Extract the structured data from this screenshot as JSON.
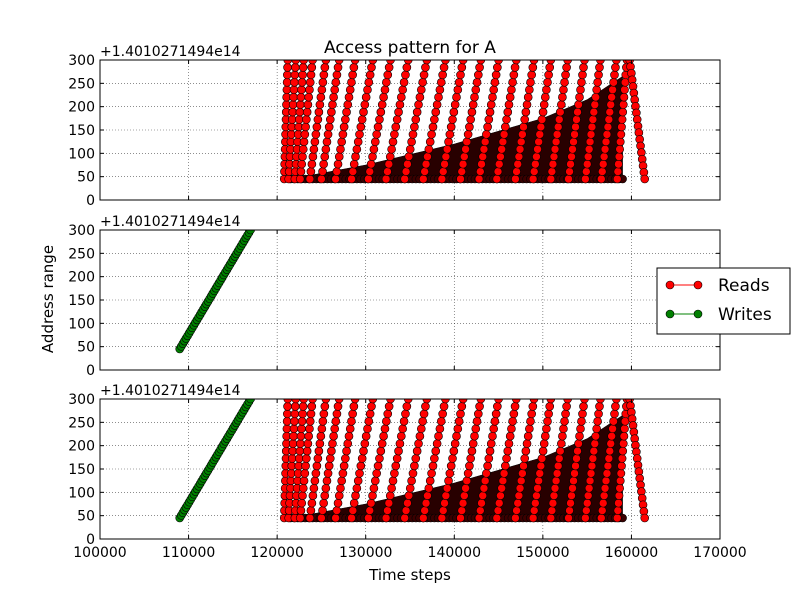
{
  "chart_data": {
    "type": "scatter",
    "title": "Access pattern for A",
    "xlabel": "Time steps",
    "ylabel": "Address range",
    "y_offset_label": "+1.4010271494e14",
    "xlim": [
      100000,
      170000
    ],
    "ylim": [
      0,
      300
    ],
    "x_ticks": [
      "100000",
      "110000",
      "120000",
      "130000",
      "140000",
      "150000",
      "160000",
      "170000"
    ],
    "y_ticks": [
      "0",
      "50",
      "100",
      "150",
      "200",
      "250",
      "300"
    ],
    "grid": true,
    "legend_placement": "outside-right",
    "legend": [
      {
        "name": "Reads",
        "color": "#ff0000",
        "edge": "#000000"
      },
      {
        "name": "Writes",
        "color": "#008000",
        "edge": "#000000"
      }
    ],
    "series": [
      {
        "name": "Reads",
        "color": "#ff0000",
        "rising_sweeps": [
          {
            "x_start": 120800,
            "x_end": 121200
          },
          {
            "x_start": 121300,
            "x_end": 122100
          },
          {
            "x_start": 122000,
            "x_end": 123000
          },
          {
            "x_start": 122600,
            "x_end": 124000
          },
          {
            "x_start": 123700,
            "x_end": 125500
          },
          {
            "x_start": 125000,
            "x_end": 127000
          },
          {
            "x_start": 126600,
            "x_end": 128800
          },
          {
            "x_start": 128400,
            "x_end": 130800
          },
          {
            "x_start": 130300,
            "x_end": 132800
          },
          {
            "x_start": 132300,
            "x_end": 134800
          },
          {
            "x_start": 134400,
            "x_end": 136900
          },
          {
            "x_start": 136500,
            "x_end": 139000
          },
          {
            "x_start": 138600,
            "x_end": 141000
          },
          {
            "x_start": 140700,
            "x_end": 143000
          },
          {
            "x_start": 142800,
            "x_end": 145000
          },
          {
            "x_start": 144800,
            "x_end": 147000
          },
          {
            "x_start": 146900,
            "x_end": 149000
          },
          {
            "x_start": 148900,
            "x_end": 150900
          },
          {
            "x_start": 150900,
            "x_end": 152800
          },
          {
            "x_start": 152900,
            "x_end": 154700
          },
          {
            "x_start": 154800,
            "x_end": 156500
          },
          {
            "x_start": 156600,
            "x_end": 158300
          },
          {
            "x_start": 158400,
            "x_end": 159500
          }
        ],
        "baseline": {
          "x_start": 121500,
          "x_end": 159000,
          "y": 45
        },
        "dense_region_upper_edge": [
          [
            121500,
            45
          ],
          [
            130000,
            75
          ],
          [
            140000,
            120
          ],
          [
            150000,
            175
          ],
          [
            155000,
            215
          ],
          [
            159000,
            265
          ]
        ],
        "tail": {
          "x_start": 159800,
          "x_end": 161500,
          "y_start": 300,
          "y_end": 45
        }
      },
      {
        "name": "Writes",
        "color": "#008000",
        "line": {
          "x_start": 109000,
          "y_start": 45,
          "x_end": 117000,
          "y_end": 300
        }
      }
    ],
    "subplots": [
      {
        "panel": "top",
        "series": [
          "Reads"
        ],
        "ylabel": ""
      },
      {
        "panel": "middle",
        "series": [
          "Writes"
        ],
        "ylabel": "Address range"
      },
      {
        "panel": "bottom",
        "series": [
          "Reads",
          "Writes"
        ],
        "ylabel": ""
      }
    ]
  }
}
